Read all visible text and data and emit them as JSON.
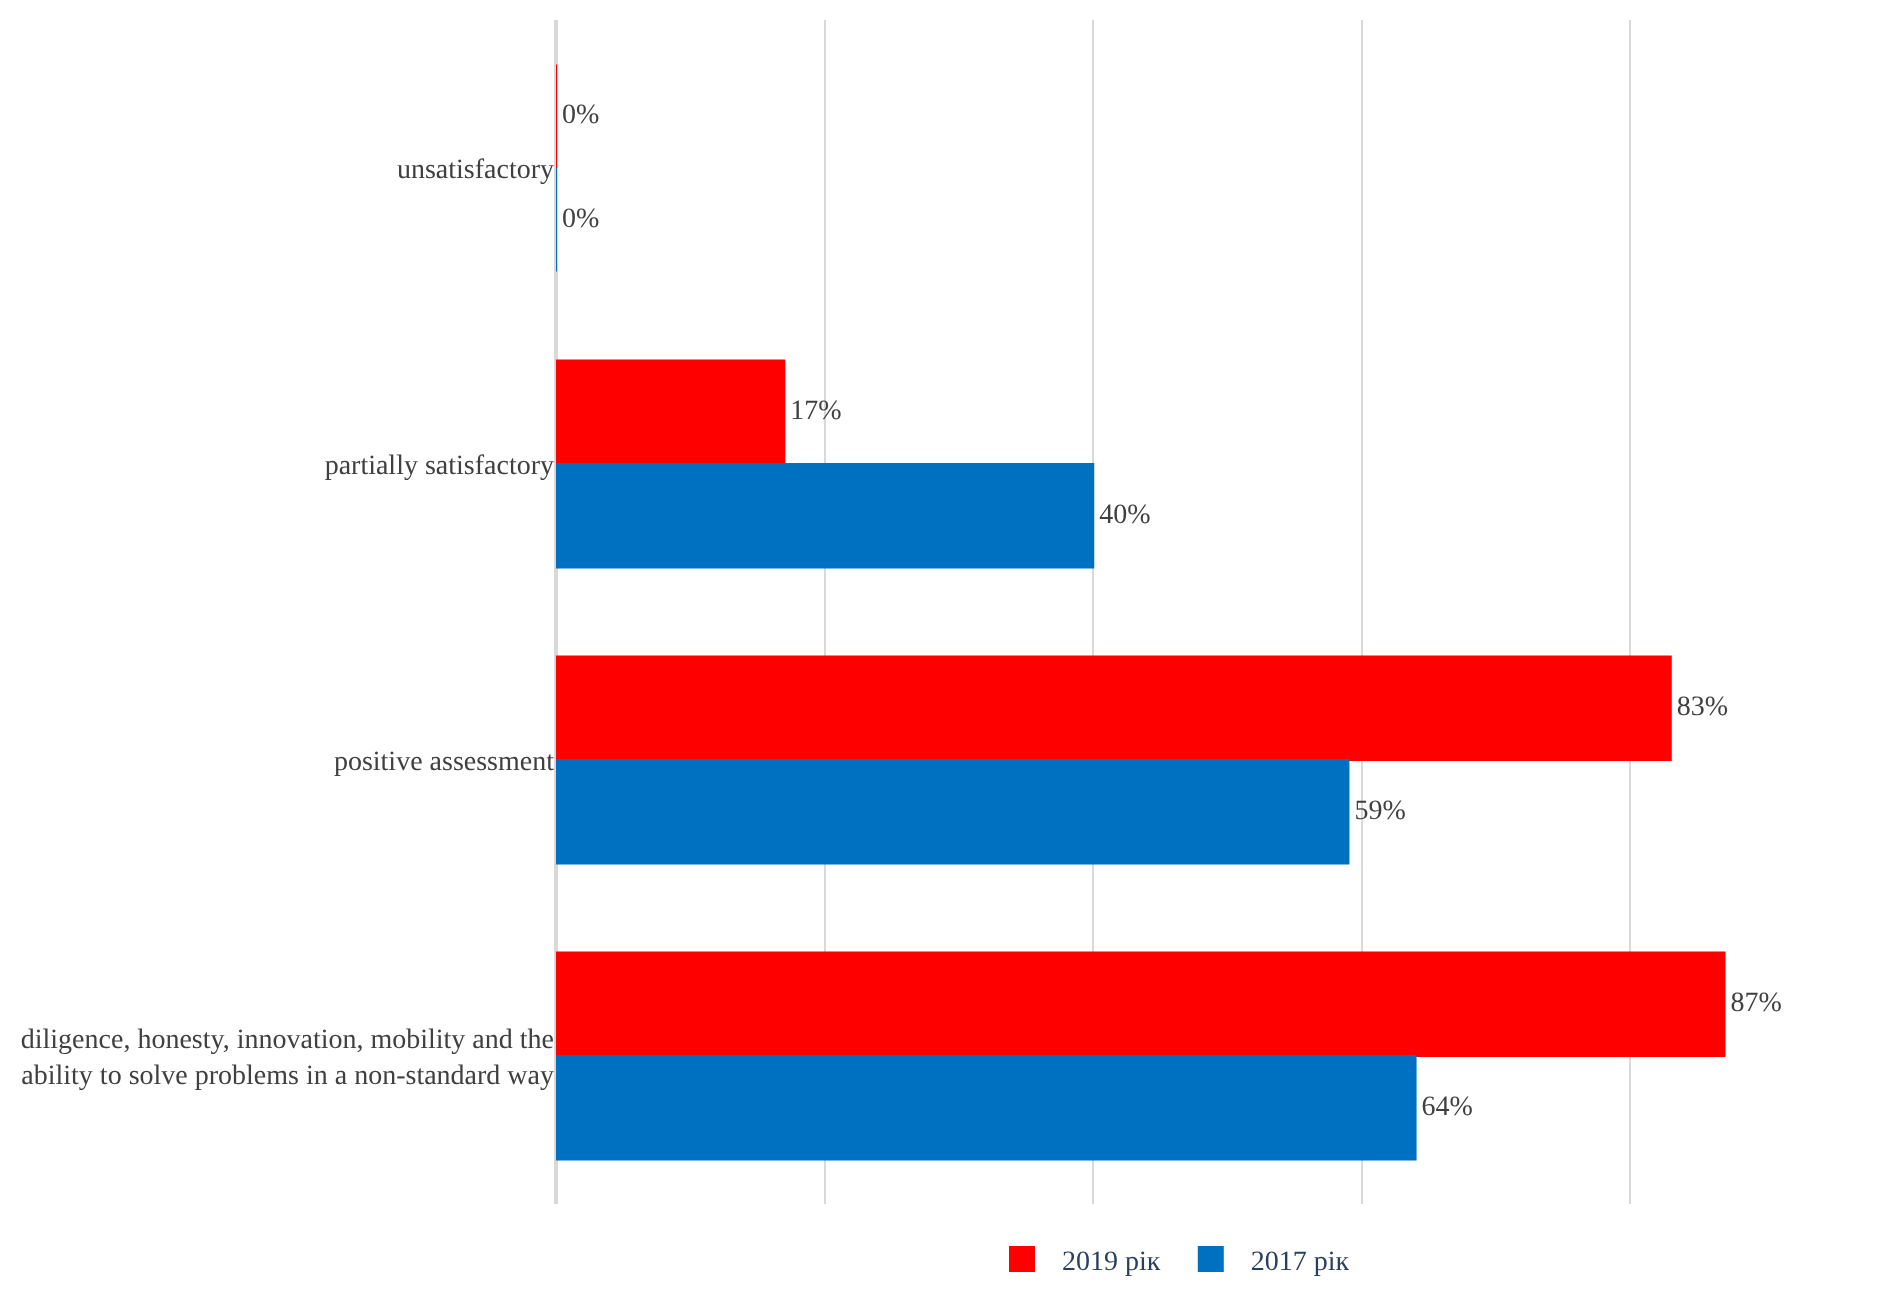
{
  "chart_data": {
    "type": "bar",
    "orientation": "horizontal",
    "categories": [
      "unsatisfactory",
      "partially satisfactory",
      "positive assessment",
      "diligence, honesty, innovation, mobility and the ability to solve problems in a non-standard way"
    ],
    "series": [
      {
        "name": "2019 рік",
        "color": "#ff0000",
        "values": [
          0,
          17,
          83,
          87
        ],
        "value_labels": [
          "0%",
          "17%",
          "83%",
          "87%"
        ]
      },
      {
        "name": "2017 рік",
        "color": "#0070c0",
        "values": [
          0,
          40,
          59,
          64
        ],
        "value_labels": [
          "0%",
          "40%",
          "59%",
          "64%"
        ]
      }
    ],
    "tick_labels": "y",
    "grid": "x",
    "legend": "bottom"
  }
}
